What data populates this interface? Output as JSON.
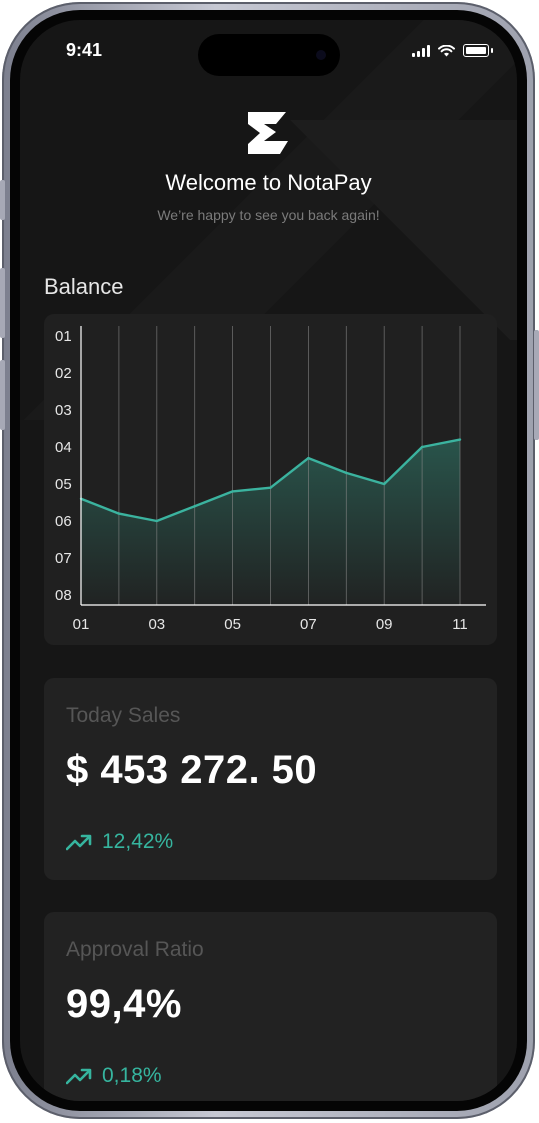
{
  "status_bar": {
    "time": "9:41"
  },
  "header": {
    "title": "Welcome to NotaPay",
    "subtitle": "We’re happy to see you back again!"
  },
  "balance": {
    "title": "Balance"
  },
  "chart_data": {
    "type": "area",
    "title": "Balance",
    "x": [
      1,
      2,
      3,
      4,
      5,
      6,
      7,
      8,
      9,
      10,
      11
    ],
    "x_tick_labels": [
      "01",
      "03",
      "05",
      "07",
      "09",
      "11"
    ],
    "x_tick_values": [
      1,
      3,
      5,
      7,
      9,
      11
    ],
    "y_tick_labels": [
      "01",
      "02",
      "03",
      "04",
      "05",
      "06",
      "07",
      "08"
    ],
    "y_tick_values": [
      1,
      2,
      3,
      4,
      5,
      6,
      7,
      8
    ],
    "ylim": [
      1,
      8
    ],
    "y_inverted": true,
    "series": [
      {
        "values": [
          5.4,
          5.8,
          6.0,
          5.6,
          5.2,
          5.1,
          4.3,
          4.7,
          5.0,
          4.0,
          3.8
        ]
      }
    ],
    "vertical_grid": true,
    "line_color": "#3bb39f",
    "fill_color": "#2a5a50"
  },
  "cards": [
    {
      "label": "Today Sales",
      "value": "$ 453 272. 50",
      "change": "12,42%",
      "icon": "trend-up-icon"
    },
    {
      "label": "Approval Ratio",
      "value": "99,4%",
      "change": "0,18%",
      "icon": "trend-up-icon"
    }
  ],
  "colors": {
    "accent": "#36b59f",
    "background": "#161616",
    "card": "#222222"
  }
}
